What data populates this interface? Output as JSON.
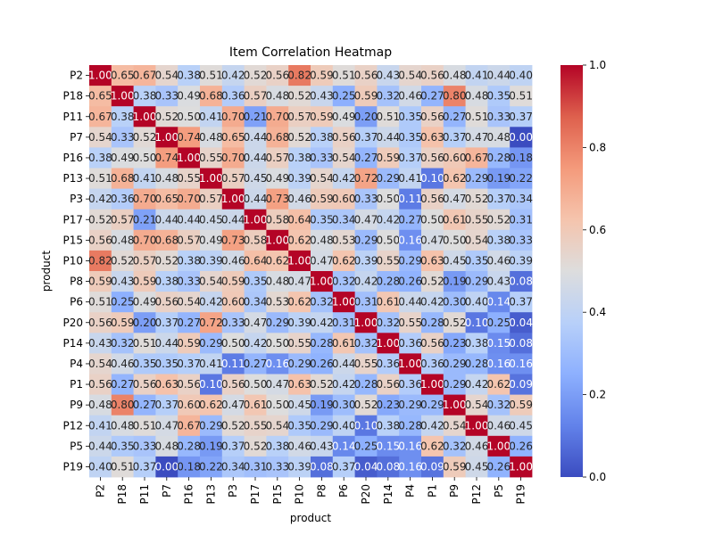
{
  "chart_data": {
    "type": "heatmap",
    "title": "Item Correlation Heatmap",
    "xlabel": "product",
    "ylabel": "product",
    "labels": [
      "P2",
      "P18",
      "P11",
      "P7",
      "P16",
      "P13",
      "P3",
      "P17",
      "P15",
      "P10",
      "P8",
      "P6",
      "P20",
      "P14",
      "P4",
      "P1",
      "P9",
      "P12",
      "P5",
      "P19"
    ],
    "values": [
      [
        1.0,
        0.65,
        0.67,
        0.54,
        0.38,
        0.51,
        0.42,
        0.52,
        0.56,
        0.82,
        0.59,
        0.51,
        0.56,
        0.43,
        0.54,
        0.56,
        0.48,
        0.41,
        0.44,
        0.4
      ],
      [
        0.65,
        1.0,
        0.38,
        0.33,
        0.49,
        0.68,
        0.36,
        0.57,
        0.48,
        0.52,
        0.43,
        0.25,
        0.59,
        0.32,
        0.46,
        0.27,
        0.8,
        0.48,
        0.35,
        0.51
      ],
      [
        0.67,
        0.38,
        1.0,
        0.52,
        0.5,
        0.41,
        0.7,
        0.21,
        0.7,
        0.57,
        0.59,
        0.49,
        0.2,
        0.51,
        0.35,
        0.56,
        0.27,
        0.51,
        0.33,
        0.37
      ],
      [
        0.54,
        0.33,
        0.52,
        1.0,
        0.74,
        0.48,
        0.65,
        0.44,
        0.68,
        0.52,
        0.38,
        0.56,
        0.37,
        0.44,
        0.35,
        0.63,
        0.37,
        0.47,
        0.48,
        0.0
      ],
      [
        0.38,
        0.49,
        0.5,
        0.74,
        1.0,
        0.55,
        0.7,
        0.44,
        0.57,
        0.38,
        0.33,
        0.54,
        0.27,
        0.59,
        0.37,
        0.56,
        0.6,
        0.67,
        0.28,
        0.18
      ],
      [
        0.51,
        0.68,
        0.41,
        0.48,
        0.55,
        1.0,
        0.57,
        0.45,
        0.49,
        0.39,
        0.54,
        0.42,
        0.72,
        0.29,
        0.41,
        0.1,
        0.62,
        0.29,
        0.19,
        0.22
      ],
      [
        0.42,
        0.36,
        0.7,
        0.65,
        0.7,
        0.57,
        1.0,
        0.44,
        0.73,
        0.46,
        0.59,
        0.6,
        0.33,
        0.5,
        0.11,
        0.56,
        0.47,
        0.52,
        0.37,
        0.34
      ],
      [
        0.52,
        0.57,
        0.21,
        0.44,
        0.44,
        0.45,
        0.44,
        1.0,
        0.58,
        0.64,
        0.35,
        0.34,
        0.47,
        0.42,
        0.27,
        0.5,
        0.61,
        0.55,
        0.52,
        0.31
      ],
      [
        0.56,
        0.48,
        0.7,
        0.68,
        0.57,
        0.49,
        0.73,
        0.58,
        1.0,
        0.62,
        0.48,
        0.53,
        0.29,
        0.5,
        0.16,
        0.47,
        0.5,
        0.54,
        0.38,
        0.33
      ],
      [
        0.82,
        0.52,
        0.57,
        0.52,
        0.38,
        0.39,
        0.46,
        0.64,
        0.62,
        1.0,
        0.47,
        0.62,
        0.39,
        0.55,
        0.29,
        0.63,
        0.45,
        0.35,
        0.46,
        0.39
      ],
      [
        0.59,
        0.43,
        0.59,
        0.38,
        0.33,
        0.54,
        0.59,
        0.35,
        0.48,
        0.47,
        1.0,
        0.32,
        0.42,
        0.28,
        0.26,
        0.52,
        0.19,
        0.29,
        0.43,
        0.08
      ],
      [
        0.51,
        0.25,
        0.49,
        0.56,
        0.54,
        0.42,
        0.6,
        0.34,
        0.53,
        0.62,
        0.32,
        1.0,
        0.31,
        0.61,
        0.44,
        0.42,
        0.3,
        0.4,
        0.14,
        0.37
      ],
      [
        0.56,
        0.59,
        0.2,
        0.37,
        0.27,
        0.72,
        0.33,
        0.47,
        0.29,
        0.39,
        0.42,
        0.31,
        1.0,
        0.32,
        0.55,
        0.28,
        0.52,
        0.1,
        0.25,
        0.04
      ],
      [
        0.43,
        0.32,
        0.51,
        0.44,
        0.59,
        0.29,
        0.5,
        0.42,
        0.5,
        0.55,
        0.28,
        0.61,
        0.32,
        1.0,
        0.36,
        0.56,
        0.23,
        0.38,
        0.15,
        0.08
      ],
      [
        0.54,
        0.46,
        0.35,
        0.35,
        0.37,
        0.41,
        0.11,
        0.27,
        0.16,
        0.29,
        0.26,
        0.44,
        0.55,
        0.36,
        1.0,
        0.36,
        0.29,
        0.28,
        0.16,
        0.16
      ],
      [
        0.56,
        0.27,
        0.56,
        0.63,
        0.56,
        0.1,
        0.56,
        0.5,
        0.47,
        0.63,
        0.52,
        0.42,
        0.28,
        0.56,
        0.36,
        1.0,
        0.29,
        0.42,
        0.62,
        0.09
      ],
      [
        0.48,
        0.8,
        0.27,
        0.37,
        0.6,
        0.62,
        0.47,
        0.61,
        0.5,
        0.45,
        0.19,
        0.3,
        0.52,
        0.23,
        0.29,
        0.29,
        1.0,
        0.54,
        0.32,
        0.59
      ],
      [
        0.41,
        0.48,
        0.51,
        0.47,
        0.67,
        0.29,
        0.52,
        0.55,
        0.54,
        0.35,
        0.29,
        0.4,
        0.1,
        0.38,
        0.28,
        0.42,
        0.54,
        1.0,
        0.46,
        0.45
      ],
      [
        0.44,
        0.35,
        0.33,
        0.48,
        0.28,
        0.19,
        0.37,
        0.52,
        0.38,
        0.46,
        0.43,
        0.14,
        0.25,
        0.15,
        0.16,
        0.62,
        0.32,
        0.46,
        1.0,
        0.26
      ],
      [
        0.4,
        0.51,
        0.37,
        0.0,
        0.18,
        0.22,
        0.34,
        0.31,
        0.33,
        0.39,
        0.08,
        0.37,
        0.04,
        0.08,
        0.16,
        0.09,
        0.59,
        0.45,
        0.26,
        1.0
      ]
    ],
    "vmin": 0.0,
    "vmax": 1.0,
    "colormap": "coolwarm",
    "colorbar_ticks": [
      "0.0",
      "0.2",
      "0.4",
      "0.6",
      "0.8",
      "1.0"
    ],
    "annotation_format": "0.00"
  }
}
